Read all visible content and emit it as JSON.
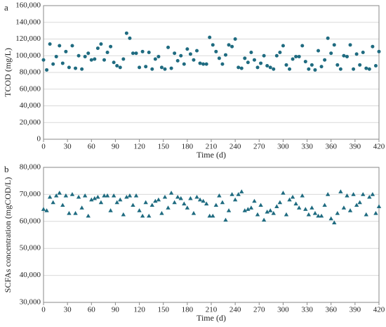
{
  "chart_data": [
    {
      "type": "scatter",
      "label": "a",
      "xlabel": "Time (d)",
      "ylabel": "TCOD (mg/L)",
      "color": "#1f6b80",
      "marker": "circle",
      "grid": true,
      "xlim": [
        0,
        420
      ],
      "xticks": [
        0,
        30,
        60,
        90,
        120,
        150,
        180,
        210,
        240,
        270,
        300,
        330,
        360,
        390,
        420
      ],
      "ylim": [
        0,
        160000
      ],
      "yticks": [
        0,
        {
          "value": 20000,
          "label": "20,000"
        },
        {
          "value": 40000,
          "label": "40,000"
        },
        {
          "value": 60000,
          "label": "60,000"
        },
        {
          "value": 80000,
          "label": "80,000"
        },
        {
          "value": 100000,
          "label": "100,000"
        },
        {
          "value": 120000,
          "label": "120,000"
        },
        {
          "value": 140000,
          "label": "140,000"
        },
        {
          "value": 160000,
          "label": "160,000"
        }
      ],
      "x": [
        0,
        4,
        8,
        12,
        16,
        20,
        24,
        28,
        32,
        36,
        40,
        44,
        48,
        52,
        56,
        60,
        64,
        68,
        72,
        76,
        80,
        84,
        88,
        92,
        96,
        100,
        104,
        108,
        112,
        116,
        120,
        124,
        128,
        132,
        136,
        140,
        144,
        148,
        152,
        156,
        160,
        164,
        168,
        172,
        176,
        180,
        184,
        188,
        192,
        196,
        200,
        204,
        208,
        212,
        216,
        220,
        224,
        228,
        232,
        236,
        240,
        244,
        248,
        252,
        256,
        260,
        264,
        268,
        272,
        276,
        280,
        284,
        288,
        292,
        296,
        300,
        304,
        308,
        312,
        316,
        320,
        324,
        328,
        332,
        336,
        340,
        344,
        348,
        352,
        356,
        360,
        364,
        368,
        372,
        376,
        380,
        384,
        388,
        392,
        396,
        400,
        404,
        408,
        412,
        416,
        420
      ],
      "values": [
        95000,
        83000,
        114000,
        90000,
        99000,
        112000,
        91000,
        105000,
        86000,
        112000,
        85000,
        100000,
        84000,
        99000,
        103000,
        95000,
        96000,
        109000,
        114000,
        95000,
        104000,
        111000,
        92000,
        88000,
        86000,
        96000,
        127000,
        121000,
        103000,
        103000,
        86000,
        105000,
        87000,
        104000,
        84000,
        96000,
        99000,
        86000,
        84000,
        110000,
        85000,
        103000,
        94000,
        100000,
        90000,
        108000,
        102000,
        95000,
        106000,
        91000,
        90000,
        90000,
        122000,
        113000,
        105000,
        97000,
        90000,
        101000,
        113000,
        111000,
        120000,
        86000,
        85000,
        97000,
        92000,
        104000,
        95000,
        86000,
        91000,
        100000,
        88000,
        86000,
        84000,
        100000,
        104000,
        112000,
        89000,
        84000,
        96000,
        99000,
        99000,
        112000,
        93000,
        84000,
        89000,
        83000,
        106000,
        87000,
        95000,
        121000,
        103000,
        113000,
        89000,
        84000,
        100000,
        99000,
        113000,
        84000,
        102000,
        89000,
        104000,
        85000,
        84000,
        111000,
        88000,
        105000
      ]
    },
    {
      "type": "scatter",
      "label": "b",
      "xlabel": "Time (d)",
      "ylabel": "SCFAs concentration (mgCOD/L)",
      "color": "#1f6b80",
      "marker": "triangle",
      "grid": true,
      "xlim": [
        0,
        420
      ],
      "xticks": [
        0,
        30,
        60,
        90,
        120,
        150,
        180,
        210,
        240,
        270,
        300,
        330,
        360,
        390,
        420
      ],
      "ylim": [
        30000,
        80000
      ],
      "yticks": [
        {
          "value": 30000,
          "label": "30,000"
        },
        {
          "value": 40000,
          "label": "40,000"
        },
        {
          "value": 50000,
          "label": "50,000"
        },
        {
          "value": 60000,
          "label": "60,000"
        },
        {
          "value": 70000,
          "label": "70,000"
        },
        {
          "value": 80000,
          "label": "80,000"
        }
      ],
      "x": [
        0,
        4,
        8,
        12,
        16,
        20,
        24,
        28,
        32,
        36,
        40,
        44,
        48,
        52,
        56,
        60,
        64,
        68,
        72,
        76,
        80,
        84,
        88,
        92,
        96,
        100,
        104,
        108,
        112,
        116,
        120,
        124,
        128,
        132,
        136,
        140,
        144,
        148,
        152,
        156,
        160,
        164,
        168,
        172,
        176,
        180,
        184,
        188,
        192,
        196,
        200,
        204,
        208,
        212,
        216,
        220,
        224,
        228,
        232,
        236,
        240,
        244,
        248,
        252,
        256,
        260,
        264,
        268,
        272,
        276,
        280,
        284,
        288,
        292,
        296,
        300,
        304,
        308,
        312,
        316,
        320,
        324,
        328,
        332,
        336,
        340,
        344,
        348,
        352,
        356,
        360,
        364,
        368,
        372,
        376,
        380,
        384,
        388,
        392,
        396,
        400,
        404,
        408,
        412,
        416,
        420
      ],
      "values": [
        64500,
        64000,
        69000,
        67000,
        69500,
        70500,
        66000,
        69500,
        63000,
        70000,
        63000,
        69000,
        65000,
        69500,
        62000,
        68000,
        68500,
        69000,
        67000,
        69500,
        69500,
        64000,
        69500,
        67000,
        68000,
        62500,
        69000,
        69500,
        66000,
        69500,
        64000,
        62000,
        67000,
        62000,
        66000,
        67500,
        68000,
        63000,
        69000,
        65000,
        70500,
        67000,
        69000,
        68500,
        66500,
        65000,
        68500,
        63000,
        69000,
        68000,
        67500,
        66500,
        62000,
        62000,
        66000,
        69500,
        67000,
        60500,
        64000,
        70000,
        68000,
        70000,
        71000,
        64000,
        64500,
        65000,
        67500,
        62500,
        66000,
        60500,
        63500,
        64000,
        63000,
        65500,
        67000,
        70500,
        62500,
        68000,
        69000,
        66500,
        65000,
        69500,
        64500,
        62500,
        65000,
        63000,
        62000,
        62000,
        66000,
        70000,
        61000,
        59500,
        63000,
        71000,
        65000,
        69500,
        64000,
        70000,
        66000,
        67000,
        70000,
        62500,
        69000,
        70000,
        63000,
        65500
      ]
    }
  ]
}
